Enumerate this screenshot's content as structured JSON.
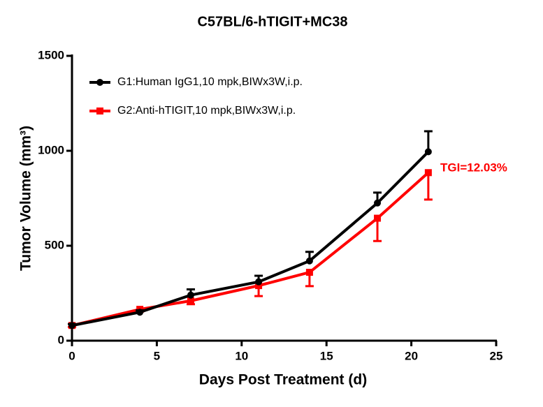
{
  "chart_data": {
    "type": "line",
    "title": "C57BL/6-hTIGIT+MC38",
    "x_label": "Days Post Treatment (d)",
    "y_label": "Tumor Volume (mm³)",
    "x": [
      0,
      4,
      7,
      11,
      14,
      18,
      21
    ],
    "series": [
      {
        "name": "G1:Human IgG1,10 mpk,BIWx3W,i.p.",
        "color": "#000000",
        "marker": "circle",
        "values": [
          80,
          150,
          240,
          310,
          420,
          725,
          995
        ],
        "errors": [
          8,
          10,
          30,
          32,
          48,
          55,
          108
        ]
      },
      {
        "name": "G2:Anti-hTIGIT,10 mpk,BIWx3W,i.p.",
        "color": "#ff0000",
        "marker": "square",
        "values": [
          80,
          165,
          210,
          290,
          360,
          645,
          885
        ],
        "errors": [
          8,
          12,
          18,
          55,
          73,
          120,
          142
        ]
      }
    ],
    "annotation": "TGI=12.03%",
    "xlim": [
      0,
      25
    ],
    "xticks": [
      0,
      5,
      10,
      15,
      20,
      25
    ],
    "ylim": [
      0,
      1500
    ],
    "yticks": [
      0,
      500,
      1000,
      1500
    ]
  }
}
